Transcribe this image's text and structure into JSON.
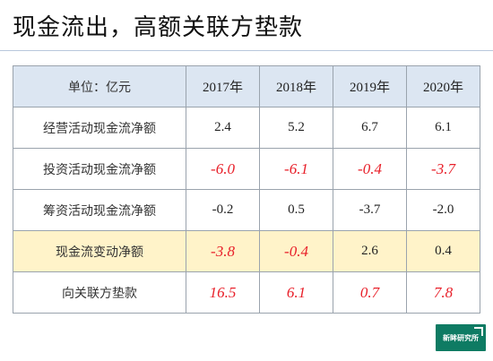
{
  "title": "现金流出，高额关联方垫款",
  "table": {
    "header": {
      "label": "单位：亿元",
      "years": [
        "2017年",
        "2018年",
        "2019年",
        "2020年"
      ]
    },
    "rows": [
      {
        "label": "经营活动现金流净额",
        "values": [
          "2.4",
          "5.2",
          "6.7",
          "6.1"
        ],
        "red": [
          false,
          false,
          false,
          false
        ],
        "highlight": false
      },
      {
        "label": "投资活动现金流净额",
        "values": [
          "-6.0",
          "-6.1",
          "-0.4",
          "-3.7"
        ],
        "red": [
          true,
          true,
          true,
          true
        ],
        "highlight": false
      },
      {
        "label": "筹资活动现金流净额",
        "values": [
          "-0.2",
          "0.5",
          "-3.7",
          "-2.0"
        ],
        "red": [
          false,
          false,
          false,
          false
        ],
        "highlight": false
      },
      {
        "label": "现金流变动净额",
        "values": [
          "-3.8",
          "-0.4",
          "2.6",
          "0.4"
        ],
        "red": [
          true,
          true,
          false,
          false
        ],
        "highlight": true
      },
      {
        "label": "向关联方垫款",
        "values": [
          "16.5",
          "6.1",
          "0.7",
          "7.8"
        ],
        "red": [
          true,
          true,
          true,
          true
        ],
        "highlight": false
      }
    ]
  },
  "colors": {
    "header_bg": "#dce6f2",
    "highlight_bg": "#fff3c9",
    "negative_red": "#e8202a",
    "logo_green": "#0e7b63"
  },
  "logo": {
    "text": "新眸研究所",
    "icon": "corner-bracket-icon"
  }
}
